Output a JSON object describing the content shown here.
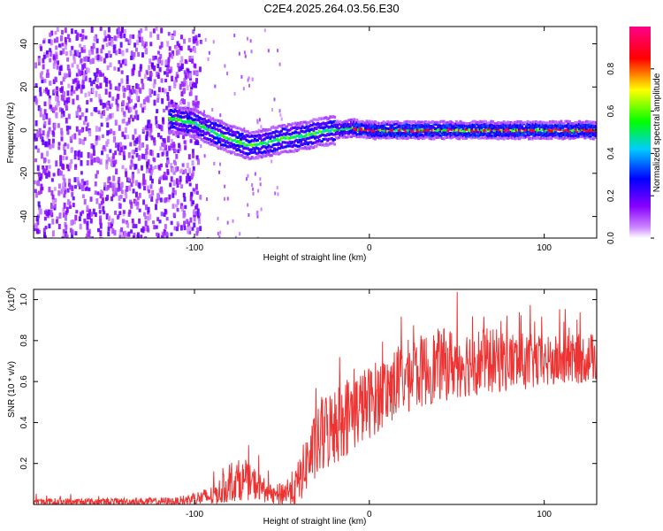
{
  "title": "C2E4.2025.264.03.56.E30",
  "chart_data": [
    {
      "type": "heatmap",
      "xlabel": "Height of straight line (km)",
      "ylabel": "Frequency (Hz)",
      "xlim": [
        -192,
        130
      ],
      "ylim": [
        -50,
        48
      ],
      "x_ticks": [
        -100,
        0,
        100
      ],
      "y_ticks": [
        -40,
        -20,
        0,
        20,
        40
      ],
      "colorbar": {
        "label": "Normalized spectral amplitude",
        "range": [
          0,
          1
        ],
        "ticks": [
          "0.0",
          "0.2",
          "0.4",
          "0.6",
          "0.8"
        ],
        "stops": [
          "#ffffff",
          "#8800ff",
          "#0000ff",
          "#00ffff",
          "#00ff00",
          "#ffff00",
          "#ff0000",
          "#ff00ff"
        ]
      },
      "ridge": [
        {
          "x": -112,
          "y": 5
        },
        {
          "x": -100,
          "y": 3
        },
        {
          "x": -90,
          "y": -1
        },
        {
          "x": -80,
          "y": -4
        },
        {
          "x": -70,
          "y": -7
        },
        {
          "x": -60,
          "y": -6
        },
        {
          "x": -50,
          "y": -4
        },
        {
          "x": -40,
          "y": -3
        },
        {
          "x": -30,
          "y": -1
        },
        {
          "x": -20,
          "y": 0
        },
        {
          "x": -10,
          "y": 1
        },
        {
          "x": 0,
          "y": 0
        },
        {
          "x": 50,
          "y": 0
        },
        {
          "x": 100,
          "y": 0
        },
        {
          "x": 130,
          "y": 0
        }
      ]
    },
    {
      "type": "line",
      "xlabel": "Height of straight line (km)",
      "ylabel": "SNR (10 * v/v)",
      "y_multiplier": "(x10",
      "y_multiplier_exp": "4",
      "xlim": [
        -192,
        130
      ],
      "ylim": [
        0,
        1.05
      ],
      "x_ticks": [
        -100,
        0,
        100
      ],
      "y_ticks": [
        "0.2",
        "0.4",
        "0.6",
        "0.8",
        "1.0"
      ],
      "color": "#ee3333",
      "envelope": [
        {
          "x": -192,
          "y": 0.01,
          "amp": 0.02
        },
        {
          "x": -110,
          "y": 0.015,
          "amp": 0.02
        },
        {
          "x": -90,
          "y": 0.04,
          "amp": 0.05
        },
        {
          "x": -75,
          "y": 0.12,
          "amp": 0.1
        },
        {
          "x": -65,
          "y": 0.1,
          "amp": 0.08
        },
        {
          "x": -55,
          "y": 0.04,
          "amp": 0.04
        },
        {
          "x": -42,
          "y": 0.08,
          "amp": 0.1
        },
        {
          "x": -35,
          "y": 0.22,
          "amp": 0.15
        },
        {
          "x": -25,
          "y": 0.35,
          "amp": 0.2
        },
        {
          "x": -15,
          "y": 0.42,
          "amp": 0.2
        },
        {
          "x": 0,
          "y": 0.5,
          "amp": 0.18
        },
        {
          "x": 20,
          "y": 0.62,
          "amp": 0.18
        },
        {
          "x": 40,
          "y": 0.68,
          "amp": 0.18
        },
        {
          "x": 60,
          "y": 0.7,
          "amp": 0.17
        },
        {
          "x": 80,
          "y": 0.7,
          "amp": 0.15
        },
        {
          "x": 100,
          "y": 0.69,
          "amp": 0.13
        },
        {
          "x": 130,
          "y": 0.72,
          "amp": 0.12
        }
      ]
    }
  ]
}
